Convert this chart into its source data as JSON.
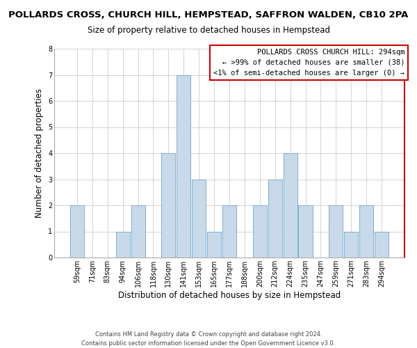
{
  "title": "POLLARDS CROSS, CHURCH HILL, HEMPSTEAD, SAFFRON WALDEN, CB10 2PA",
  "subtitle": "Size of property relative to detached houses in Hempstead",
  "xlabel": "Distribution of detached houses by size in Hempstead",
  "ylabel": "Number of detached properties",
  "categories": [
    "59sqm",
    "71sqm",
    "83sqm",
    "94sqm",
    "106sqm",
    "118sqm",
    "130sqm",
    "141sqm",
    "153sqm",
    "165sqm",
    "177sqm",
    "188sqm",
    "200sqm",
    "212sqm",
    "224sqm",
    "235sqm",
    "247sqm",
    "259sqm",
    "271sqm",
    "283sqm",
    "294sqm"
  ],
  "values": [
    2,
    0,
    0,
    1,
    2,
    0,
    4,
    7,
    3,
    1,
    2,
    0,
    2,
    3,
    4,
    2,
    0,
    2,
    1,
    2,
    1
  ],
  "highlight_index": 20,
  "bar_color": "#c8daea",
  "bar_edgecolor": "#7aaed4",
  "grid_color": "#cccccc",
  "background_color": "#ffffff",
  "annotation_edgecolor": "#cc0000",
  "annotation_text": "POLLARDS CROSS CHURCH HILL: 294sqm\n← >99% of detached houses are smaller (38)\n<1% of semi-detached houses are larger (0) →",
  "annotation_fontsize": 7.5,
  "ylim": [
    0,
    8
  ],
  "yticks": [
    0,
    1,
    2,
    3,
    4,
    5,
    6,
    7,
    8
  ],
  "title_fontsize": 9.5,
  "subtitle_fontsize": 8.5,
  "xlabel_fontsize": 8.5,
  "ylabel_fontsize": 8.5,
  "tick_fontsize": 7,
  "footer_text": "Contains HM Land Registry data © Crown copyright and database right 2024.\nContains public sector information licensed under the Open Government Licence v3.0.",
  "footer_fontsize": 6
}
